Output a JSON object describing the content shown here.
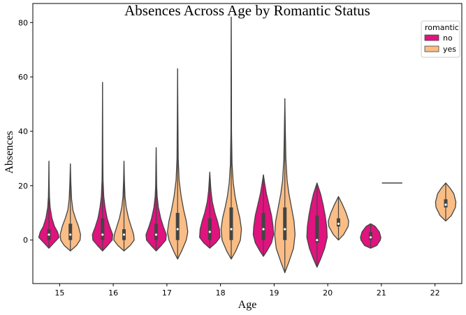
{
  "chart_data": {
    "type": "violin",
    "title": "Absences Across Age by Romantic Status",
    "xlabel": "Age",
    "ylabel": "Absences",
    "categories": [
      "15",
      "16",
      "17",
      "18",
      "19",
      "20",
      "21",
      "22"
    ],
    "ylim": [
      -16,
      87
    ],
    "yticks": [
      0,
      20,
      40,
      60,
      80
    ],
    "grid": false,
    "legend": {
      "title": "romantic",
      "placement": "top-right"
    },
    "series": [
      {
        "name": "no",
        "color": "#e0137f",
        "violins": [
          {
            "age": "15",
            "min": -3,
            "max": 29,
            "q1": 0,
            "median": 2,
            "q3": 4,
            "profile": [
              [
                -3,
                0
              ],
              [
                -1,
                0.5
              ],
              [
                1,
                1.0
              ],
              [
                3,
                0.85
              ],
              [
                5,
                0.55
              ],
              [
                8,
                0.3
              ],
              [
                12,
                0.12
              ],
              [
                16,
                0.05
              ],
              [
                22,
                0.02
              ],
              [
                29,
                0
              ]
            ]
          },
          {
            "age": "16",
            "min": -4,
            "max": 58,
            "q1": 0,
            "median": 2,
            "q3": 8,
            "profile": [
              [
                -4,
                0
              ],
              [
                -2,
                0.5
              ],
              [
                0,
                0.95
              ],
              [
                2,
                1.0
              ],
              [
                5,
                0.7
              ],
              [
                8,
                0.45
              ],
              [
                12,
                0.25
              ],
              [
                16,
                0.12
              ],
              [
                22,
                0.05
              ],
              [
                30,
                0.03
              ],
              [
                40,
                0.02
              ],
              [
                58,
                0
              ]
            ]
          },
          {
            "age": "17",
            "min": -4,
            "max": 34,
            "q1": 0,
            "median": 2,
            "q3": 6,
            "profile": [
              [
                -4,
                0
              ],
              [
                -2,
                0.5
              ],
              [
                0,
                0.95
              ],
              [
                2,
                1.0
              ],
              [
                5,
                0.7
              ],
              [
                8,
                0.45
              ],
              [
                12,
                0.22
              ],
              [
                16,
                0.1
              ],
              [
                20,
                0.05
              ],
              [
                26,
                0.03
              ],
              [
                34,
                0
              ]
            ]
          },
          {
            "age": "18",
            "min": -3,
            "max": 25,
            "q1": 0,
            "median": 3,
            "q3": 8,
            "profile": [
              [
                -3,
                0
              ],
              [
                -1,
                0.6
              ],
              [
                1,
                1.0
              ],
              [
                4,
                0.95
              ],
              [
                7,
                0.75
              ],
              [
                10,
                0.5
              ],
              [
                14,
                0.25
              ],
              [
                18,
                0.12
              ],
              [
                22,
                0.05
              ],
              [
                25,
                0
              ]
            ]
          },
          {
            "age": "19",
            "min": -6,
            "max": 24,
            "q1": 0,
            "median": 4,
            "q3": 10,
            "profile": [
              [
                -6,
                0
              ],
              [
                -4,
                0.35
              ],
              [
                -1,
                0.8
              ],
              [
                2,
                1.0
              ],
              [
                5,
                0.95
              ],
              [
                9,
                0.8
              ],
              [
                13,
                0.55
              ],
              [
                17,
                0.3
              ],
              [
                21,
                0.12
              ],
              [
                24,
                0
              ]
            ]
          },
          {
            "age": "20",
            "min": -10,
            "max": 21,
            "q1": -1,
            "median": 0,
            "q3": 9,
            "profile": [
              [
                -10,
                0
              ],
              [
                -7,
                0.35
              ],
              [
                -3,
                0.75
              ],
              [
                1,
                1.0
              ],
              [
                5,
                0.95
              ],
              [
                9,
                0.8
              ],
              [
                13,
                0.6
              ],
              [
                17,
                0.35
              ],
              [
                21,
                0
              ]
            ]
          },
          {
            "age": "21",
            "min": -3,
            "max": 6,
            "q1": 0,
            "median": 1,
            "q3": 3,
            "profile": [
              [
                -3,
                0
              ],
              [
                -2,
                0.6
              ],
              [
                0,
                0.95
              ],
              [
                1,
                1.0
              ],
              [
                3,
                0.85
              ],
              [
                5,
                0.45
              ],
              [
                6,
                0
              ]
            ]
          },
          {
            "age": "22",
            "min": null,
            "max": null
          }
        ]
      },
      {
        "name": "yes",
        "color": "#f9bd85",
        "violins": [
          {
            "age": "15",
            "min": -4,
            "max": 28,
            "q1": 0,
            "median": 2,
            "q3": 6,
            "profile": [
              [
                -4,
                0
              ],
              [
                -2,
                0.6
              ],
              [
                0,
                0.95
              ],
              [
                2,
                1.0
              ],
              [
                5,
                0.8
              ],
              [
                8,
                0.5
              ],
              [
                11,
                0.25
              ],
              [
                15,
                0.12
              ],
              [
                21,
                0.05
              ],
              [
                28,
                0
              ]
            ]
          },
          {
            "age": "16",
            "min": -4,
            "max": 29,
            "q1": 0,
            "median": 2,
            "q3": 4,
            "profile": [
              [
                -4,
                0
              ],
              [
                -2,
                0.6
              ],
              [
                0,
                1.0
              ],
              [
                2,
                0.95
              ],
              [
                5,
                0.7
              ],
              [
                8,
                0.45
              ],
              [
                12,
                0.22
              ],
              [
                16,
                0.1
              ],
              [
                22,
                0.04
              ],
              [
                29,
                0
              ]
            ]
          },
          {
            "age": "17",
            "min": -7,
            "max": 63,
            "q1": 0,
            "median": 4,
            "q3": 10,
            "profile": [
              [
                -7,
                0
              ],
              [
                -4,
                0.4
              ],
              [
                0,
                0.85
              ],
              [
                3,
                1.0
              ],
              [
                7,
                0.85
              ],
              [
                11,
                0.6
              ],
              [
                16,
                0.35
              ],
              [
                22,
                0.15
              ],
              [
                30,
                0.06
              ],
              [
                45,
                0.03
              ],
              [
                63,
                0
              ]
            ]
          },
          {
            "age": "18",
            "min": -7,
            "max": 82,
            "q1": 0,
            "median": 4,
            "q3": 12,
            "profile": [
              [
                -7,
                0
              ],
              [
                -4,
                0.45
              ],
              [
                0,
                0.9
              ],
              [
                4,
                1.0
              ],
              [
                8,
                0.85
              ],
              [
                12,
                0.6
              ],
              [
                16,
                0.38
              ],
              [
                21,
                0.2
              ],
              [
                28,
                0.08
              ],
              [
                40,
                0.03
              ],
              [
                60,
                0.02
              ],
              [
                82,
                0
              ]
            ]
          },
          {
            "age": "19",
            "min": -12,
            "max": 52,
            "q1": 0,
            "median": 4,
            "q3": 12,
            "profile": [
              [
                -12,
                0
              ],
              [
                -8,
                0.4
              ],
              [
                -3,
                0.85
              ],
              [
                2,
                1.0
              ],
              [
                7,
                0.9
              ],
              [
                12,
                0.65
              ],
              [
                17,
                0.4
              ],
              [
                22,
                0.22
              ],
              [
                30,
                0.1
              ],
              [
                40,
                0.05
              ],
              [
                52,
                0
              ]
            ]
          },
          {
            "age": "20",
            "min": 0,
            "max": 16,
            "q1": 5,
            "median": 6,
            "q3": 8,
            "profile": [
              [
                0,
                0
              ],
              [
                2,
                0.5
              ],
              [
                5,
                0.95
              ],
              [
                7,
                1.0
              ],
              [
                10,
                0.75
              ],
              [
                13,
                0.4
              ],
              [
                16,
                0
              ]
            ]
          },
          {
            "age": "21",
            "min": 21,
            "max": 21,
            "q1": 21,
            "median": 21,
            "q3": 21,
            "profile": []
          },
          {
            "age": "22",
            "min": 7,
            "max": 21,
            "q1": 12,
            "median": 13,
            "q3": 15,
            "profile": [
              [
                7,
                0
              ],
              [
                9,
                0.55
              ],
              [
                12,
                0.95
              ],
              [
                14,
                1.0
              ],
              [
                17,
                0.8
              ],
              [
                19,
                0.45
              ],
              [
                21,
                0
              ]
            ]
          }
        ]
      }
    ]
  }
}
